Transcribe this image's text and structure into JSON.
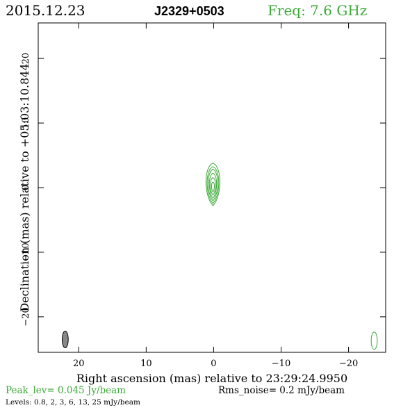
{
  "header": {
    "date": "2015.12.23",
    "source": "J2329+0503",
    "freq": "Freq: 7.6 GHz"
  },
  "footer": {
    "peak": "Peak_lev=  0.045 Jy/beam",
    "rms": "Rms_noise=   0.2 mJy/beam",
    "levels": "Levels: 0.8,    2,    3,    6,   13,   25  mJy/beam"
  },
  "colors": {
    "contour": "#3aaa35",
    "header_freq": "#3aaa35",
    "footer_peak": "#3aaa35",
    "beam_fill": "#888888",
    "axes": "#000000"
  },
  "chart_data": {
    "type": "contour",
    "xlabel": "Right ascension (mas) relative to 23:29:24.9950",
    "ylabel": "Declination (mas) relative to +05:03:10.844",
    "xlim": [
      26,
      -25.5
    ],
    "ylim": [
      -25.5,
      25.5
    ],
    "x_ticks": [
      20,
      10,
      0,
      -10,
      -20
    ],
    "x_tick_labels": [
      "20",
      "10",
      "0",
      "−10",
      "−20"
    ],
    "y_ticks": [
      20,
      10,
      0,
      -10,
      -20
    ],
    "y_tick_labels": [
      "20",
      "10",
      "0",
      "−10",
      "−20"
    ],
    "grid": false,
    "levels_mJy_per_beam": [
      0.8,
      2,
      3,
      6,
      13,
      25
    ],
    "peak_Jy_per_beam": 0.045,
    "rms_mJy_per_beam": 0.2,
    "contours": [
      {
        "level": 0.8,
        "center": [
          0.1,
          0.5
        ],
        "half_width": 1.25,
        "half_height": 3.3
      },
      {
        "level": 2,
        "center": [
          0.1,
          0.4
        ],
        "half_width": 1.05,
        "half_height": 2.85
      },
      {
        "level": 3,
        "center": [
          0.1,
          0.4
        ],
        "half_width": 0.85,
        "half_height": 2.45
      },
      {
        "level": 6,
        "center": [
          0.1,
          0.3
        ],
        "half_width": 0.65,
        "half_height": 1.95
      },
      {
        "level": 13,
        "center": [
          0.1,
          0.2
        ],
        "half_width": 0.45,
        "half_height": 1.35
      },
      {
        "level": 25,
        "center": [
          0.1,
          0.1
        ],
        "half_width": 0.25,
        "half_height": 0.75
      }
    ],
    "beam": {
      "center": [
        22,
        -23.5
      ],
      "half_width": 0.45,
      "half_height": 1.3
    },
    "beam_outline": {
      "center": [
        -23.8,
        -23.7
      ],
      "half_width": 0.45,
      "half_height": 1.35
    }
  }
}
